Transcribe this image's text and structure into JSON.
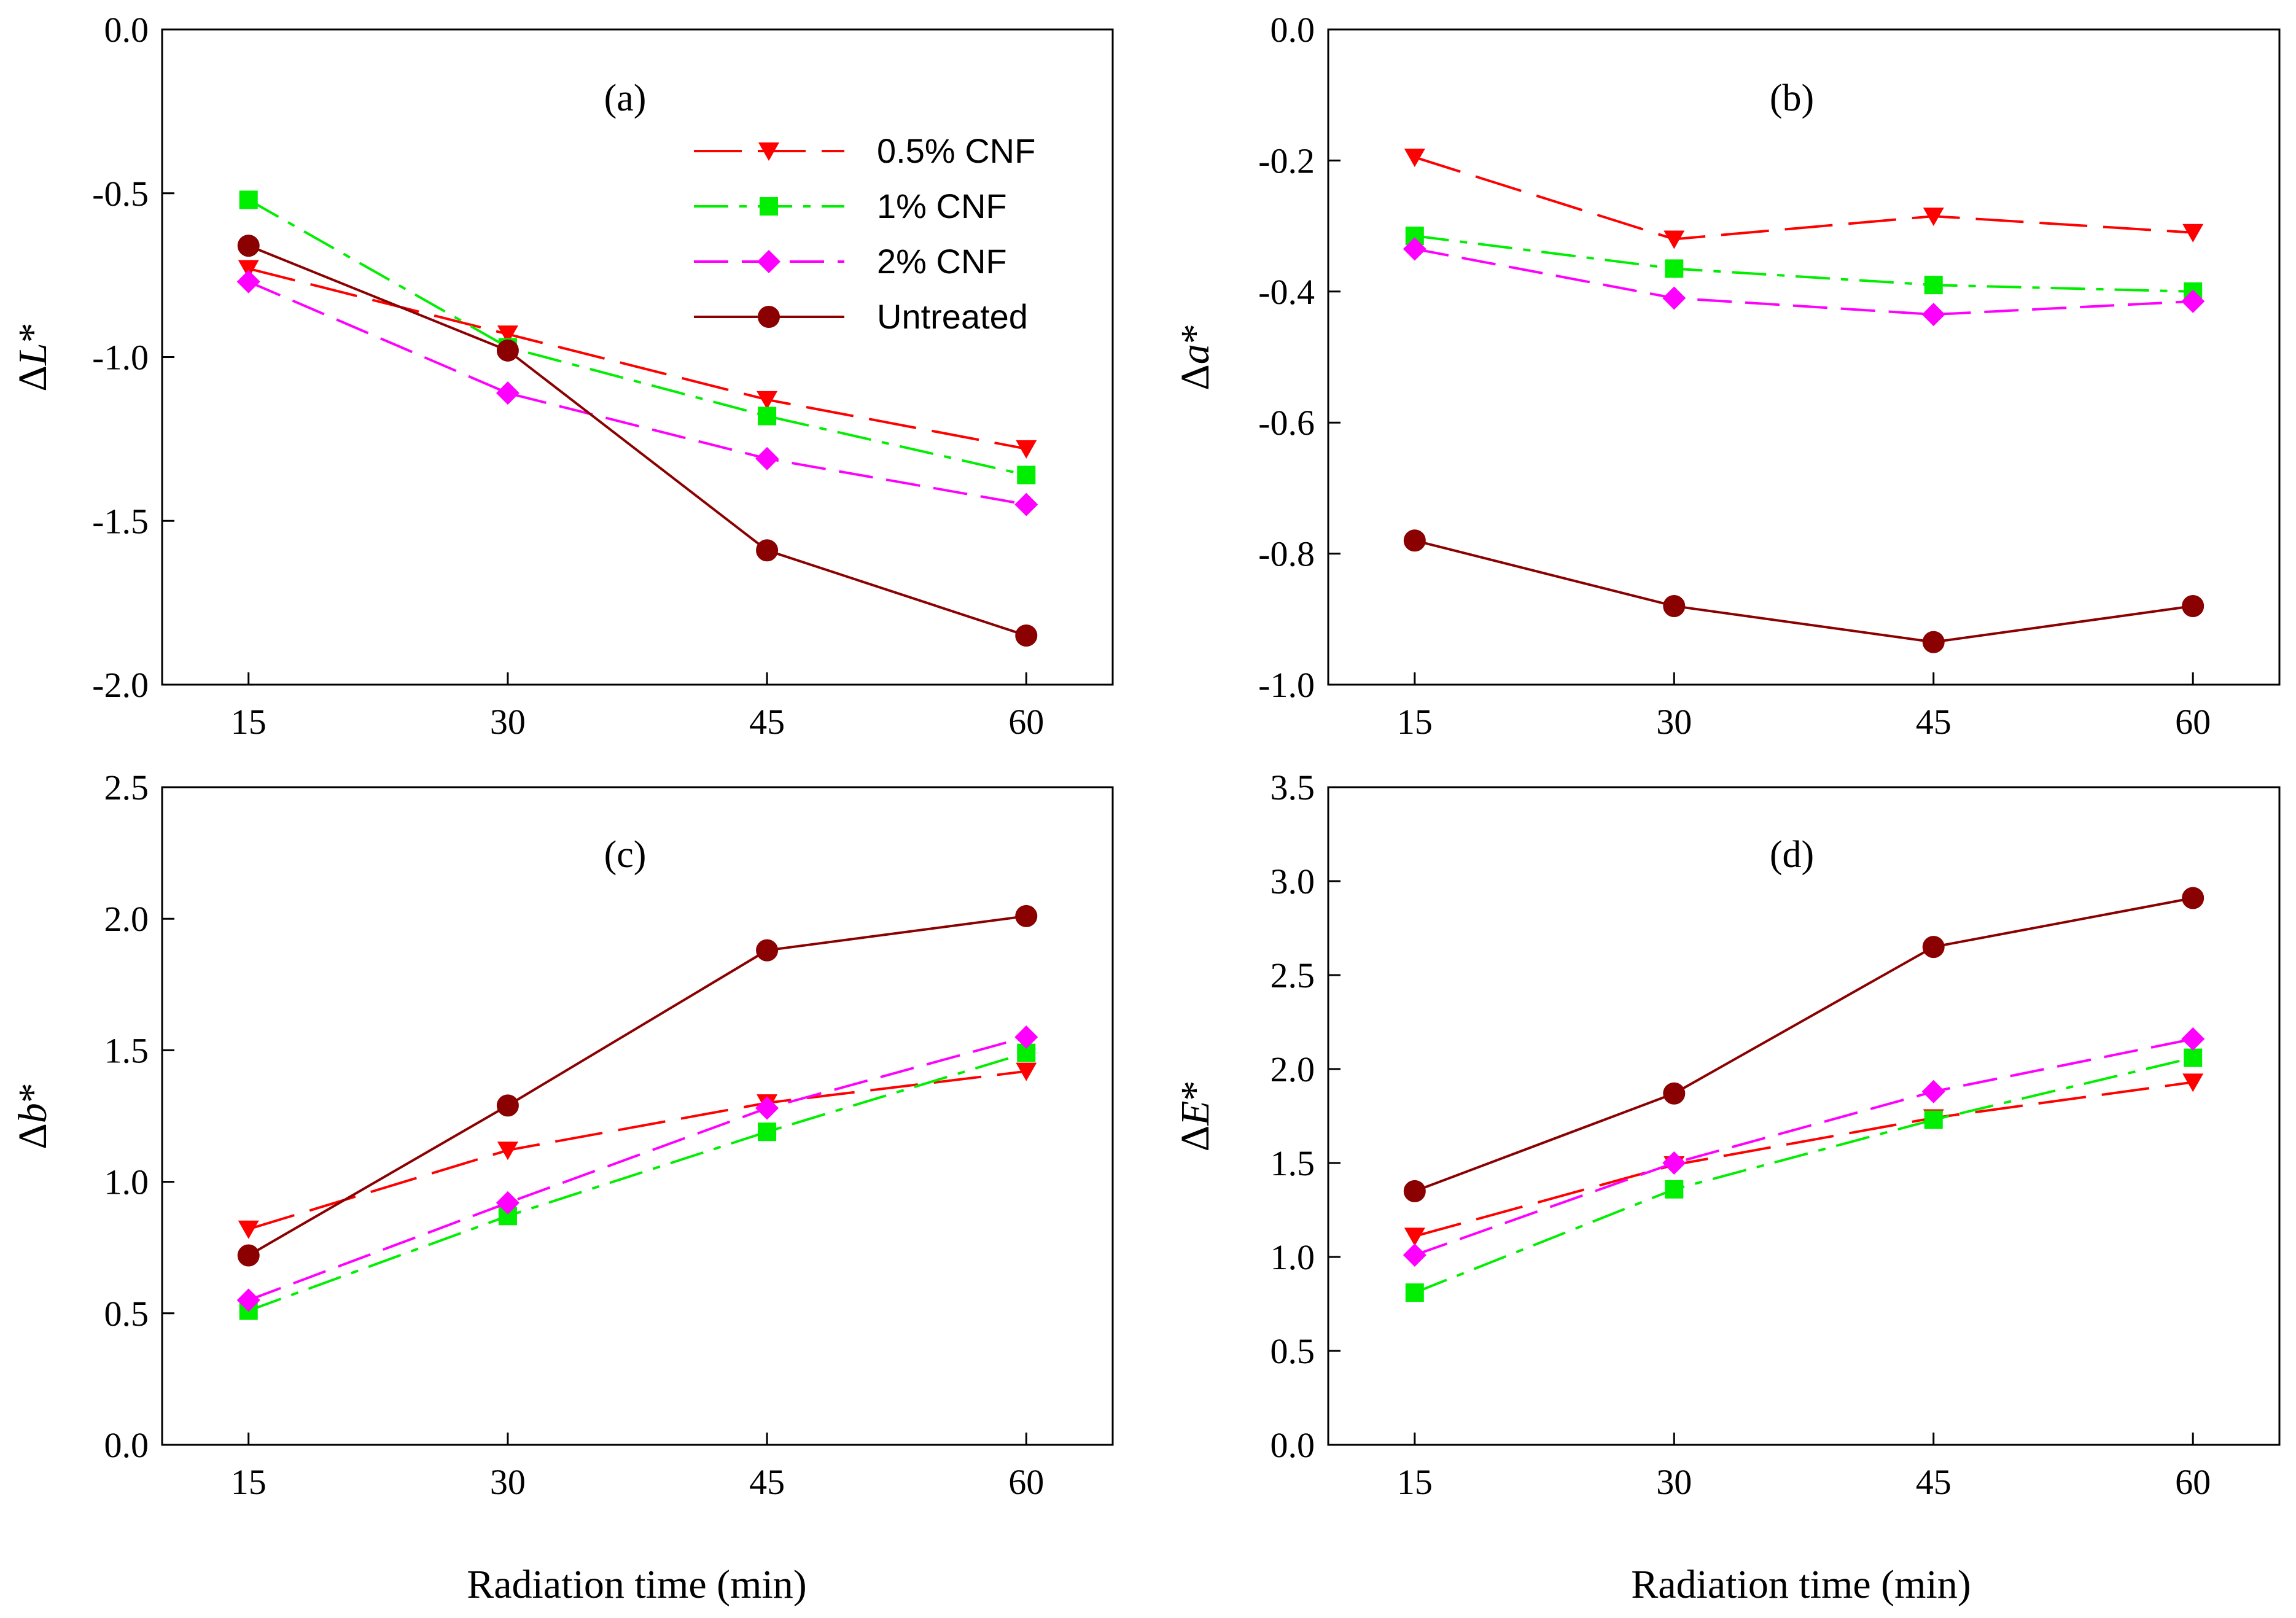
{
  "figure": {
    "xlabel": "Radiation time (min)"
  },
  "legend": {
    "placement": "top-right of panel (a)"
  },
  "series_styles": [
    {
      "name": "0.5% CNF",
      "color": "#ff0000",
      "marker": "triangle-down",
      "dash": "long-dash"
    },
    {
      "name": "1% CNF",
      "color": "#00ee00",
      "marker": "square",
      "dash": "dash-dot"
    },
    {
      "name": "2% CNF",
      "color": "#ff00ff",
      "marker": "diamond",
      "dash": "dash"
    },
    {
      "name": "Untreated",
      "color": "#8b0000",
      "marker": "circle",
      "dash": "solid"
    }
  ],
  "chart_data": [
    {
      "panel": "(a)",
      "type": "line",
      "ylabel_prefix": "Δ",
      "ylabel_var": "L",
      "ylabel_suffix": "*",
      "x": [
        15,
        30,
        45,
        60
      ],
      "xlim": [
        10,
        65
      ],
      "ylim": [
        -2.0,
        0.0
      ],
      "yticks": [
        "0.0",
        "-0.5",
        "-1.0",
        "-1.5",
        "-2.0"
      ],
      "ytick_values": [
        0.0,
        -0.5,
        -1.0,
        -1.5,
        -2.0
      ],
      "xticks": [
        "15",
        "30",
        "45",
        "60"
      ],
      "series": [
        {
          "name": "0.5% CNF",
          "values": [
            -0.73,
            -0.93,
            -1.13,
            -1.28
          ]
        },
        {
          "name": "1% CNF",
          "values": [
            -0.52,
            -0.97,
            -1.18,
            -1.36
          ]
        },
        {
          "name": "2% CNF",
          "values": [
            -0.77,
            -1.11,
            -1.31,
            -1.45
          ]
        },
        {
          "name": "Untreated",
          "values": [
            -0.66,
            -0.98,
            -1.59,
            -1.85
          ]
        }
      ]
    },
    {
      "panel": "(b)",
      "type": "line",
      "ylabel_prefix": "Δ",
      "ylabel_var": "a",
      "ylabel_suffix": "*",
      "x": [
        15,
        30,
        45,
        60
      ],
      "xlim": [
        10,
        65
      ],
      "ylim": [
        -1.0,
        0.0
      ],
      "yticks": [
        "0.0",
        "-0.2",
        "-0.4",
        "-0.6",
        "-0.8",
        "-1.0"
      ],
      "ytick_values": [
        0.0,
        -0.2,
        -0.4,
        -0.6,
        -0.8,
        -1.0
      ],
      "xticks": [
        "15",
        "30",
        "45",
        "60"
      ],
      "series": [
        {
          "name": "0.5% CNF",
          "values": [
            -0.195,
            -0.32,
            -0.285,
            -0.31
          ]
        },
        {
          "name": "1% CNF",
          "values": [
            -0.315,
            -0.365,
            -0.39,
            -0.4
          ]
        },
        {
          "name": "2% CNF",
          "values": [
            -0.335,
            -0.41,
            -0.435,
            -0.415
          ]
        },
        {
          "name": "Untreated",
          "values": [
            -0.78,
            -0.88,
            -0.935,
            -0.88
          ]
        }
      ]
    },
    {
      "panel": "(c)",
      "type": "line",
      "ylabel_prefix": "Δ",
      "ylabel_var": "b",
      "ylabel_suffix": "*",
      "x": [
        15,
        30,
        45,
        60
      ],
      "xlim": [
        10,
        65
      ],
      "ylim": [
        0.0,
        2.5
      ],
      "yticks": [
        "0.0",
        "0.5",
        "1.0",
        "1.5",
        "2.0",
        "2.5"
      ],
      "ytick_values": [
        0.0,
        0.5,
        1.0,
        1.5,
        2.0,
        2.5
      ],
      "xticks": [
        "15",
        "30",
        "45",
        "60"
      ],
      "series": [
        {
          "name": "0.5% CNF",
          "values": [
            0.82,
            1.12,
            1.3,
            1.42
          ]
        },
        {
          "name": "1% CNF",
          "values": [
            0.51,
            0.87,
            1.19,
            1.49
          ]
        },
        {
          "name": "2% CNF",
          "values": [
            0.55,
            0.92,
            1.28,
            1.55
          ]
        },
        {
          "name": "Untreated",
          "values": [
            0.72,
            1.29,
            1.88,
            2.01
          ]
        }
      ]
    },
    {
      "panel": "(d)",
      "type": "line",
      "ylabel_prefix": "Δ",
      "ylabel_var": "E",
      "ylabel_suffix": "*",
      "x": [
        15,
        30,
        45,
        60
      ],
      "xlim": [
        10,
        65
      ],
      "ylim": [
        0.0,
        3.5
      ],
      "yticks": [
        "0.0",
        "0.5",
        "1.0",
        "1.5",
        "2.0",
        "2.5",
        "3.0",
        "3.5"
      ],
      "ytick_values": [
        0.0,
        0.5,
        1.0,
        1.5,
        2.0,
        2.5,
        3.0,
        3.5
      ],
      "xticks": [
        "15",
        "30",
        "45",
        "60"
      ],
      "series": [
        {
          "name": "0.5% CNF",
          "values": [
            1.11,
            1.49,
            1.74,
            1.93
          ]
        },
        {
          "name": "1% CNF",
          "values": [
            0.81,
            1.36,
            1.73,
            2.06
          ]
        },
        {
          "name": "2% CNF",
          "values": [
            1.01,
            1.5,
            1.88,
            2.16
          ]
        },
        {
          "name": "Untreated",
          "values": [
            1.35,
            1.87,
            2.65,
            2.91
          ]
        }
      ]
    }
  ]
}
